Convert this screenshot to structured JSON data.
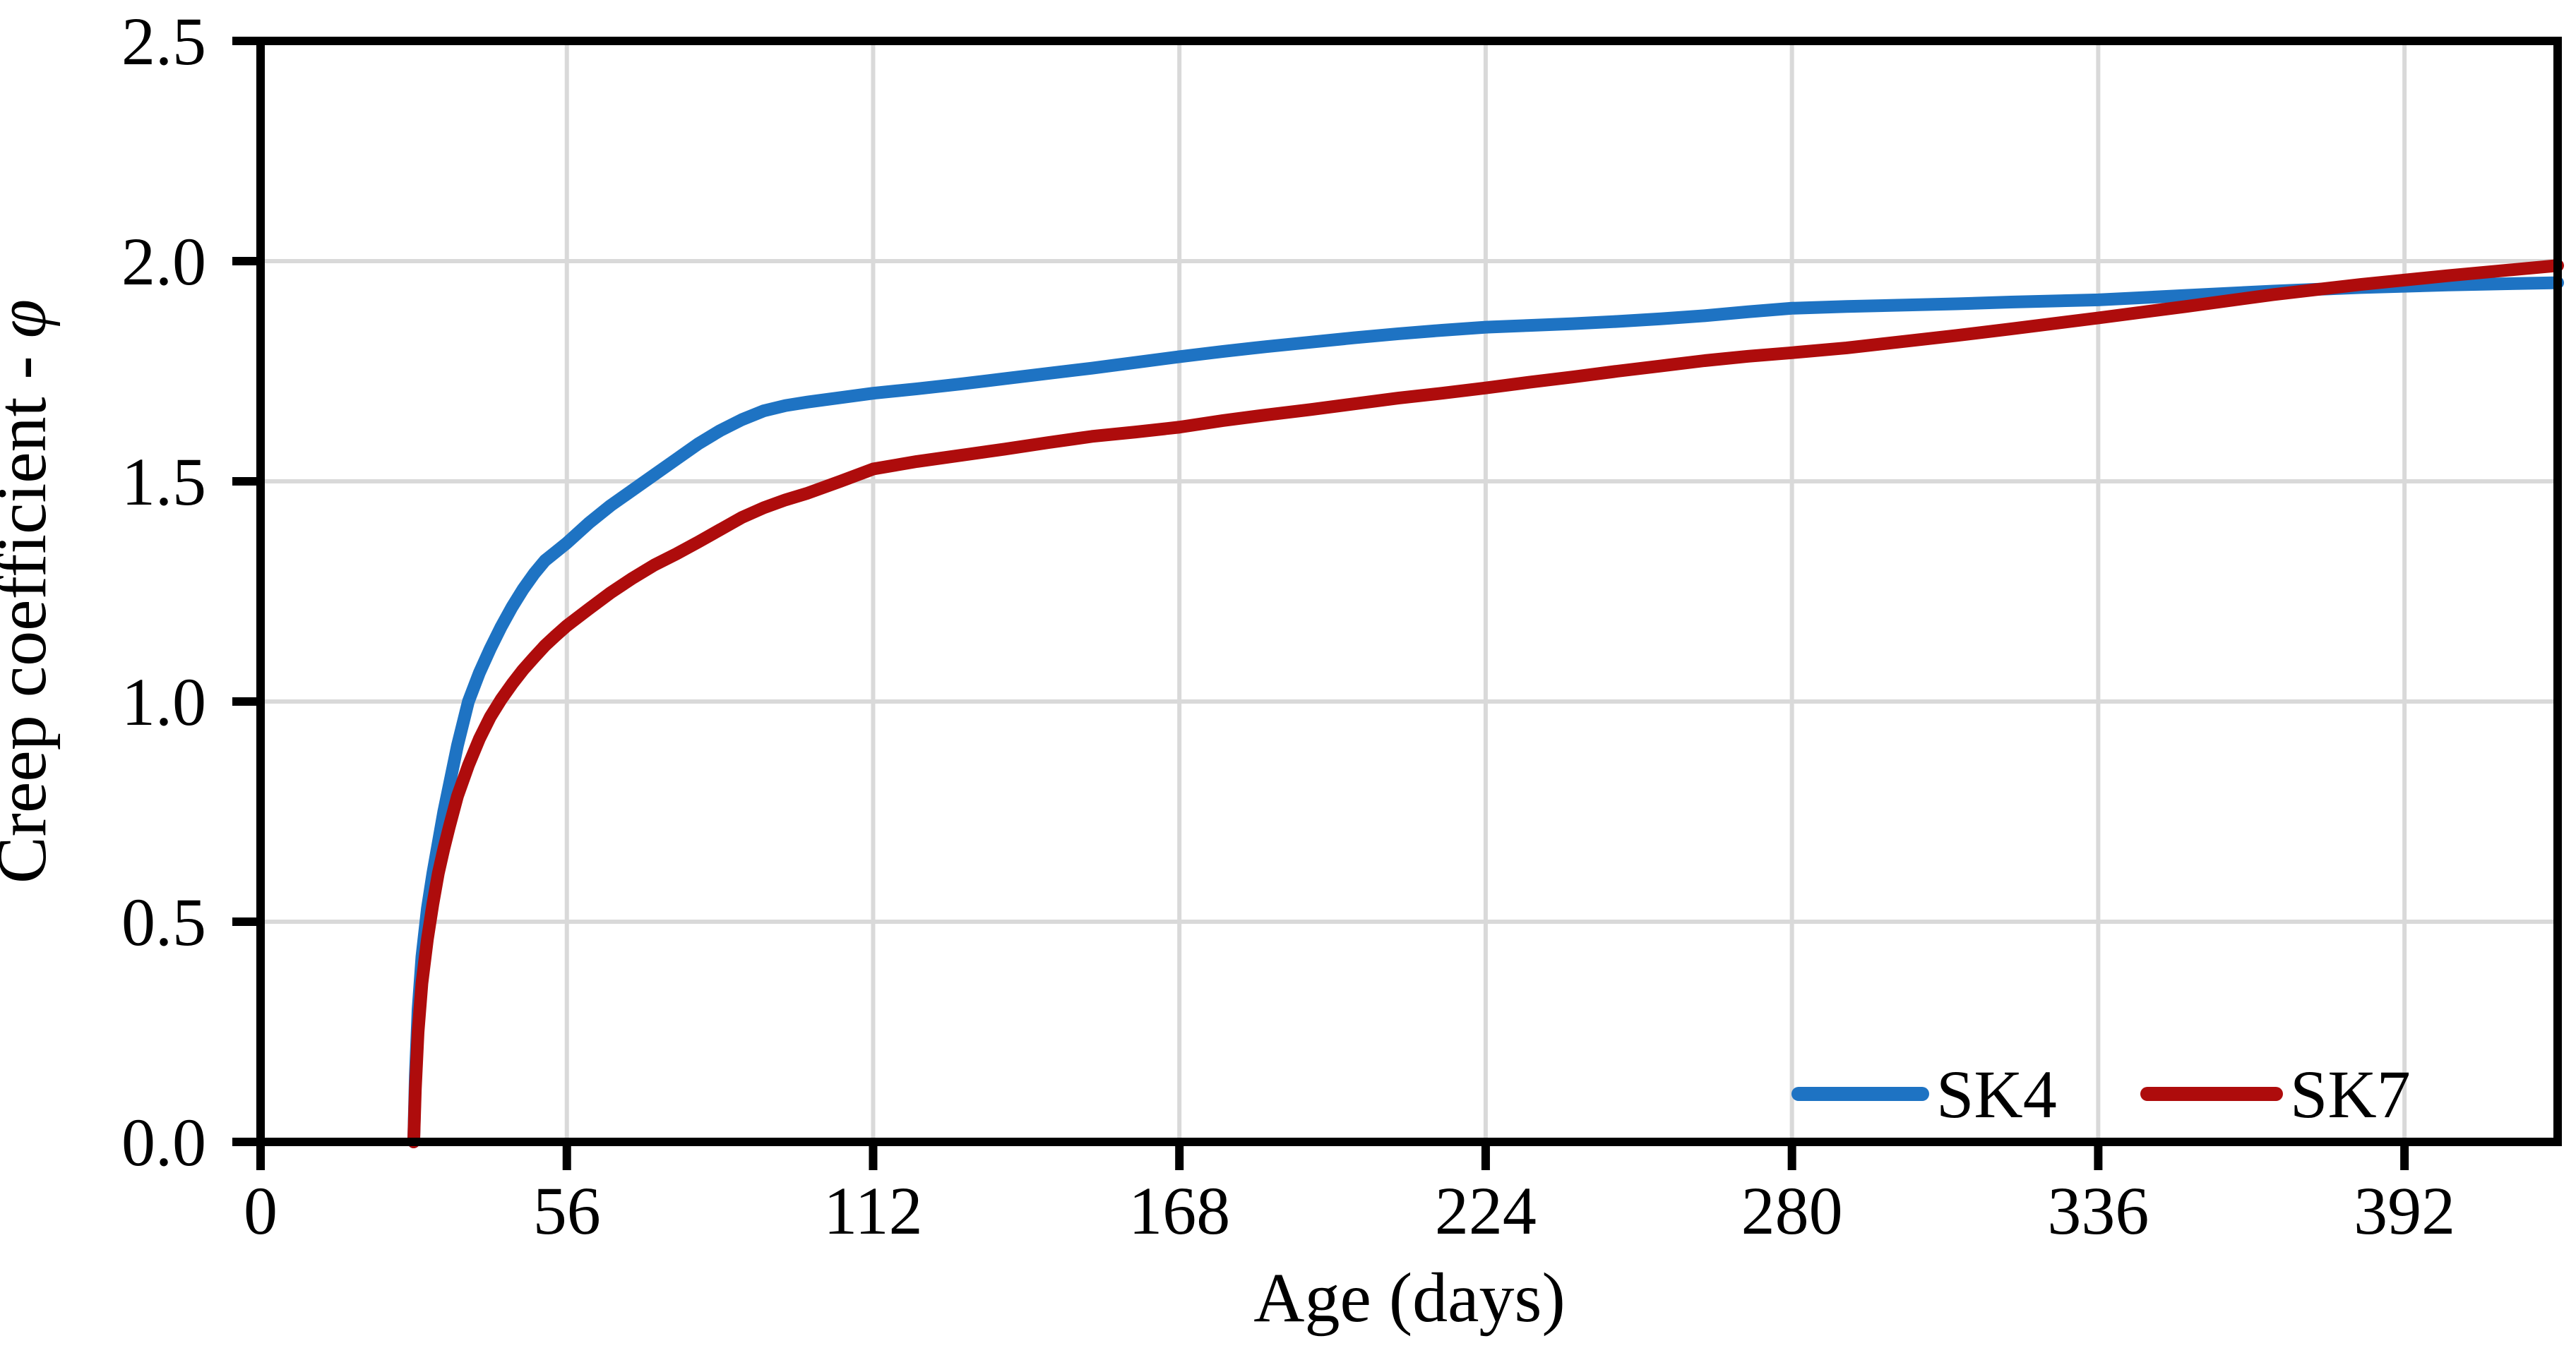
{
  "page": {
    "background": "#ffffff"
  },
  "chart_data": {
    "type": "line",
    "title": "",
    "xlabel": "Age (days)",
    "ylabel_text": "Creep coefficient - ",
    "ylabel_symbol": "φ",
    "xlim": [
      0,
      420
    ],
    "ylim": [
      0.0,
      2.5
    ],
    "x_ticks": [
      0,
      56,
      112,
      168,
      224,
      280,
      336,
      392
    ],
    "y_ticks": [
      "0.0",
      "0.5",
      "1.0",
      "1.5",
      "2.0",
      "2.5"
    ],
    "grid": true,
    "grid_color": "#D9D9D9",
    "axis_color": "#000000",
    "legend_position": "inside-bottom-right",
    "series": [
      {
        "name": "SK4",
        "color": "#1E73C3",
        "points": [
          [
            28,
            0
          ],
          [
            28.3,
            0.15
          ],
          [
            28.8,
            0.3
          ],
          [
            29.5,
            0.42
          ],
          [
            30.5,
            0.53
          ],
          [
            31.5,
            0.61
          ],
          [
            32.5,
            0.68
          ],
          [
            33.5,
            0.75
          ],
          [
            34.5,
            0.81
          ],
          [
            36,
            0.9
          ],
          [
            38,
            1.0
          ],
          [
            40,
            1.065
          ],
          [
            42,
            1.12
          ],
          [
            44,
            1.17
          ],
          [
            46,
            1.215
          ],
          [
            48,
            1.255
          ],
          [
            50,
            1.29
          ],
          [
            52,
            1.32
          ],
          [
            54,
            1.34
          ],
          [
            56,
            1.36
          ],
          [
            60,
            1.405
          ],
          [
            64,
            1.445
          ],
          [
            68,
            1.48
          ],
          [
            72,
            1.515
          ],
          [
            76,
            1.55
          ],
          [
            80,
            1.585
          ],
          [
            84,
            1.615
          ],
          [
            88,
            1.64
          ],
          [
            92,
            1.66
          ],
          [
            96,
            1.672
          ],
          [
            100,
            1.68
          ],
          [
            106,
            1.69
          ],
          [
            112,
            1.7
          ],
          [
            120,
            1.71
          ],
          [
            128,
            1.721
          ],
          [
            136,
            1.733
          ],
          [
            144,
            1.745
          ],
          [
            152,
            1.757
          ],
          [
            160,
            1.77
          ],
          [
            168,
            1.783
          ],
          [
            176,
            1.795
          ],
          [
            184,
            1.806
          ],
          [
            192,
            1.816
          ],
          [
            200,
            1.826
          ],
          [
            208,
            1.835
          ],
          [
            216,
            1.843
          ],
          [
            224,
            1.85
          ],
          [
            232,
            1.854
          ],
          [
            240,
            1.858
          ],
          [
            248,
            1.863
          ],
          [
            256,
            1.869
          ],
          [
            264,
            1.876
          ],
          [
            272,
            1.885
          ],
          [
            280,
            1.893
          ],
          [
            290,
            1.897
          ],
          [
            300,
            1.9
          ],
          [
            310,
            1.903
          ],
          [
            320,
            1.907
          ],
          [
            336,
            1.912
          ],
          [
            352,
            1.922
          ],
          [
            368,
            1.932
          ],
          [
            384,
            1.94
          ],
          [
            400,
            1.946
          ],
          [
            420,
            1.951
          ]
        ]
      },
      {
        "name": "SK7",
        "color": "#AE0C0C",
        "points": [
          [
            28,
            0
          ],
          [
            28.3,
            0.12
          ],
          [
            28.8,
            0.25
          ],
          [
            29.5,
            0.36
          ],
          [
            30.5,
            0.46
          ],
          [
            31.5,
            0.54
          ],
          [
            32.5,
            0.61
          ],
          [
            33.5,
            0.665
          ],
          [
            34.5,
            0.715
          ],
          [
            36,
            0.785
          ],
          [
            38,
            0.855
          ],
          [
            40,
            0.915
          ],
          [
            42,
            0.965
          ],
          [
            44,
            1.005
          ],
          [
            46,
            1.04
          ],
          [
            48,
            1.072
          ],
          [
            50,
            1.1
          ],
          [
            52,
            1.127
          ],
          [
            54,
            1.15
          ],
          [
            56,
            1.172
          ],
          [
            60,
            1.21
          ],
          [
            64,
            1.247
          ],
          [
            68,
            1.28
          ],
          [
            72,
            1.31
          ],
          [
            76,
            1.335
          ],
          [
            80,
            1.362
          ],
          [
            84,
            1.39
          ],
          [
            88,
            1.418
          ],
          [
            92,
            1.44
          ],
          [
            96,
            1.458
          ],
          [
            100,
            1.473
          ],
          [
            106,
            1.5
          ],
          [
            112,
            1.528
          ],
          [
            120,
            1.545
          ],
          [
            128,
            1.559
          ],
          [
            136,
            1.573
          ],
          [
            144,
            1.588
          ],
          [
            152,
            1.602
          ],
          [
            160,
            1.612
          ],
          [
            168,
            1.623
          ],
          [
            176,
            1.638
          ],
          [
            184,
            1.651
          ],
          [
            192,
            1.663
          ],
          [
            200,
            1.676
          ],
          [
            208,
            1.689
          ],
          [
            216,
            1.7
          ],
          [
            224,
            1.712
          ],
          [
            232,
            1.725
          ],
          [
            240,
            1.737
          ],
          [
            248,
            1.75
          ],
          [
            256,
            1.762
          ],
          [
            264,
            1.774
          ],
          [
            272,
            1.784
          ],
          [
            280,
            1.792
          ],
          [
            290,
            1.803
          ],
          [
            300,
            1.817
          ],
          [
            310,
            1.831
          ],
          [
            320,
            1.846
          ],
          [
            336,
            1.871
          ],
          [
            352,
            1.897
          ],
          [
            368,
            1.924
          ],
          [
            384,
            1.947
          ],
          [
            400,
            1.967
          ],
          [
            420,
            1.99
          ]
        ]
      }
    ]
  }
}
